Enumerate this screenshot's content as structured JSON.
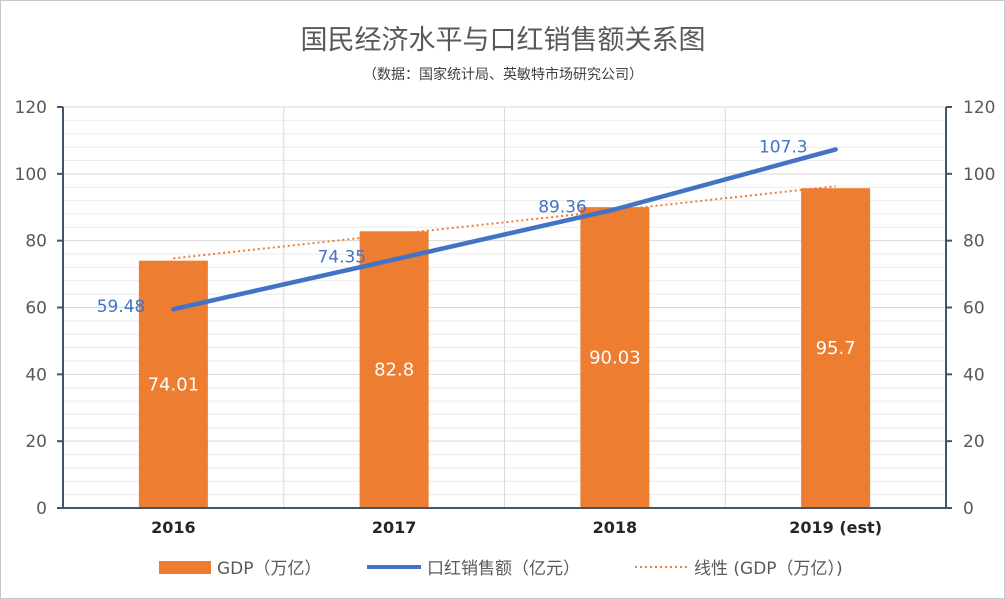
{
  "chart_data": {
    "type": "bar",
    "title": "国民经济水平与口红销售额关系图",
    "subtitle": "（数据：国家统计局、英敏特市场研究公司）",
    "categories": [
      "2016",
      "2017",
      "2018",
      "2019 (est)"
    ],
    "series": [
      {
        "name": "GDP（万亿）",
        "type": "bar",
        "values": [
          74.01,
          82.8,
          90.03,
          95.7
        ],
        "color": "#ed7d31",
        "labels": [
          "74.01",
          "82.8",
          "90.03",
          "95.7"
        ]
      },
      {
        "name": "口红销售额（亿元）",
        "type": "line",
        "values": [
          59.48,
          74.35,
          89.36,
          107.3
        ],
        "color": "#4472c4",
        "labels": [
          "59.48",
          "74.35",
          "89.36",
          "107.3"
        ]
      },
      {
        "name": "线性 (GDP（万亿）)",
        "type": "trendline",
        "values": [
          74.7,
          81.9,
          89.1,
          96.3
        ],
        "color": "#ed7d31"
      }
    ],
    "ylim": [
      0,
      120
    ],
    "y_ticks": [
      "0",
      "20",
      "40",
      "60",
      "80",
      "100",
      "120"
    ],
    "y2lim": [
      0,
      120
    ],
    "y2_ticks": [
      "0",
      "20",
      "40",
      "60",
      "80",
      "100",
      "120"
    ],
    "grid": true,
    "legend_position": "bottom"
  }
}
